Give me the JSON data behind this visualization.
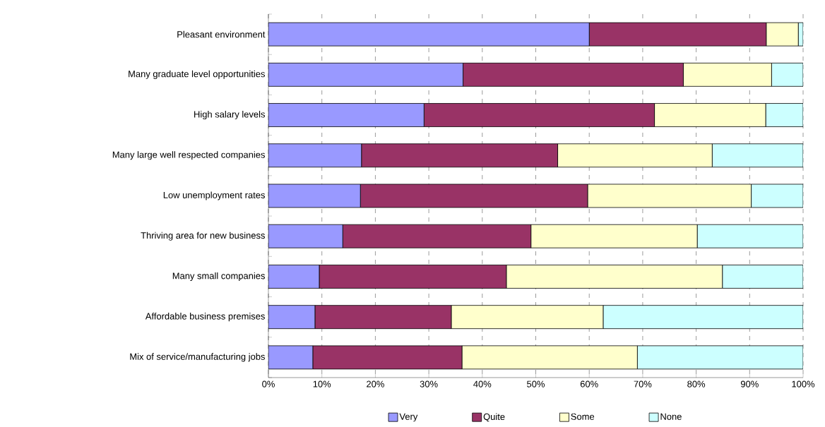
{
  "chart_data": {
    "type": "bar",
    "orientation": "horizontal",
    "stacked": true,
    "categories": [
      "Pleasant environment",
      "Many graduate level opportunities",
      "High salary levels",
      "Many large well respected companies",
      "Low unemployment rates",
      "Thriving area for new business",
      "Many small companies",
      "Affordable business premises",
      "Mix of service/manufacturing jobs"
    ],
    "series": [
      {
        "name": "Very",
        "color": "#9999ff",
        "values": [
          60.0,
          36.4,
          29.1,
          17.4,
          17.2,
          13.9,
          9.5,
          8.7,
          8.3
        ]
      },
      {
        "name": "Quite",
        "color": "#993366",
        "values": [
          33.1,
          41.2,
          43.1,
          36.7,
          42.5,
          35.2,
          35.0,
          25.5,
          27.9
        ]
      },
      {
        "name": "Some",
        "color": "#ffffcc",
        "values": [
          6.0,
          16.5,
          20.8,
          28.9,
          30.6,
          31.1,
          40.4,
          28.4,
          32.8
        ]
      },
      {
        "name": "None",
        "color": "#ccffff",
        "values": [
          0.9,
          5.9,
          7.0,
          17.0,
          9.7,
          19.8,
          15.1,
          37.4,
          31.0
        ]
      }
    ],
    "xlim": [
      0,
      100
    ],
    "xticks": [
      {
        "value": 0,
        "label": "0%"
      },
      {
        "value": 10,
        "label": "10%"
      },
      {
        "value": 20,
        "label": "20%"
      },
      {
        "value": 30,
        "label": "30%"
      },
      {
        "value": 40,
        "label": "40%"
      },
      {
        "value": 50,
        "label": "50%"
      },
      {
        "value": 60,
        "label": "60%"
      },
      {
        "value": 70,
        "label": "70%"
      },
      {
        "value": 80,
        "label": "80%"
      },
      {
        "value": 90,
        "label": "90%"
      },
      {
        "value": 100,
        "label": "100%"
      }
    ],
    "grid": "x",
    "legend": "bottom"
  }
}
